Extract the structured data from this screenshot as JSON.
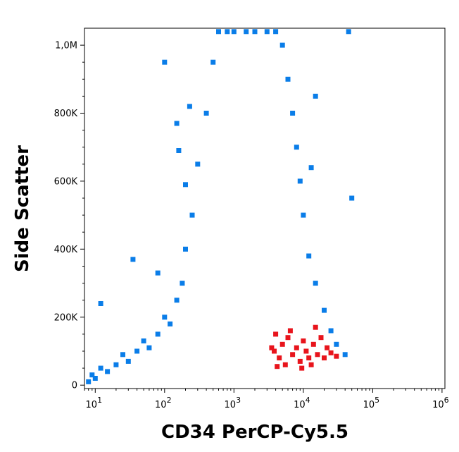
{
  "chart_data": {
    "type": "scatter",
    "title": "",
    "xlabel": "CD34 PerCP-Cy5.5",
    "ylabel": "Side Scatter",
    "x_scale": "log",
    "xlim": [
      7,
      1100000
    ],
    "ylim": [
      -10000,
      1050000
    ],
    "grid": false,
    "legend": "none",
    "x_ticks": [
      {
        "value": 10,
        "base": "10",
        "exp": "1"
      },
      {
        "value": 100,
        "base": "10",
        "exp": "2"
      },
      {
        "value": 1000,
        "base": "10",
        "exp": "3"
      },
      {
        "value": 10000,
        "base": "10",
        "exp": "4"
      },
      {
        "value": 100000,
        "base": "10",
        "exp": "5"
      },
      {
        "value": 1000000,
        "base": "10",
        "exp": "6"
      }
    ],
    "y_ticks": [
      {
        "value": 0,
        "label": "0"
      },
      {
        "value": 200000,
        "label": "200K"
      },
      {
        "value": 400000,
        "label": "400K"
      },
      {
        "value": 600000,
        "label": "600K"
      },
      {
        "value": 800000,
        "label": "800K"
      },
      {
        "value": 1000000,
        "label": "1,0M"
      }
    ],
    "series": [
      {
        "color": "#0a7de8",
        "points": [
          [
            8,
            10000
          ],
          [
            9,
            30000
          ],
          [
            10,
            20000
          ],
          [
            12,
            50000
          ],
          [
            15,
            40000
          ],
          [
            20,
            60000
          ],
          [
            25,
            90000
          ],
          [
            30,
            70000
          ],
          [
            40,
            100000
          ],
          [
            50,
            130000
          ],
          [
            60,
            110000
          ],
          [
            80,
            150000
          ],
          [
            100,
            200000
          ],
          [
            120,
            180000
          ],
          [
            150,
            250000
          ],
          [
            180,
            300000
          ],
          [
            200,
            400000
          ],
          [
            250,
            500000
          ],
          [
            300,
            650000
          ],
          [
            400,
            800000
          ],
          [
            500,
            950000
          ],
          [
            600,
            1040000
          ],
          [
            800,
            1040000
          ],
          [
            1000,
            1040000
          ],
          [
            1500,
            1040000
          ],
          [
            2000,
            1040000
          ],
          [
            3000,
            1040000
          ],
          [
            4000,
            1040000
          ],
          [
            5000,
            1000000
          ],
          [
            6000,
            900000
          ],
          [
            7000,
            800000
          ],
          [
            8000,
            700000
          ],
          [
            9000,
            600000
          ],
          [
            10000,
            500000
          ],
          [
            12000,
            380000
          ],
          [
            15000,
            300000
          ],
          [
            20000,
            220000
          ],
          [
            25000,
            160000
          ],
          [
            30000,
            120000
          ],
          [
            40000,
            90000
          ],
          [
            50000,
            550000
          ],
          [
            45000,
            1040000
          ],
          [
            35,
            370000
          ],
          [
            12,
            240000
          ],
          [
            80,
            330000
          ],
          [
            150,
            770000
          ],
          [
            100,
            950000
          ],
          [
            230,
            820000
          ],
          [
            200,
            590000
          ],
          [
            160,
            690000
          ],
          [
            13000,
            640000
          ],
          [
            15000,
            850000
          ]
        ]
      },
      {
        "color": "#e8141c",
        "points": [
          [
            3500,
            110000
          ],
          [
            4000,
            150000
          ],
          [
            4500,
            80000
          ],
          [
            5000,
            120000
          ],
          [
            5500,
            60000
          ],
          [
            6000,
            140000
          ],
          [
            7000,
            90000
          ],
          [
            8000,
            110000
          ],
          [
            9000,
            70000
          ],
          [
            10000,
            130000
          ],
          [
            11000,
            100000
          ],
          [
            12000,
            80000
          ],
          [
            14000,
            120000
          ],
          [
            16000,
            90000
          ],
          [
            18000,
            140000
          ],
          [
            20000,
            80000
          ],
          [
            22000,
            110000
          ],
          [
            25000,
            95000
          ],
          [
            30000,
            85000
          ],
          [
            4200,
            55000
          ],
          [
            3800,
            100000
          ],
          [
            6500,
            160000
          ],
          [
            9500,
            50000
          ],
          [
            13000,
            60000
          ],
          [
            15000,
            170000
          ]
        ]
      }
    ]
  }
}
